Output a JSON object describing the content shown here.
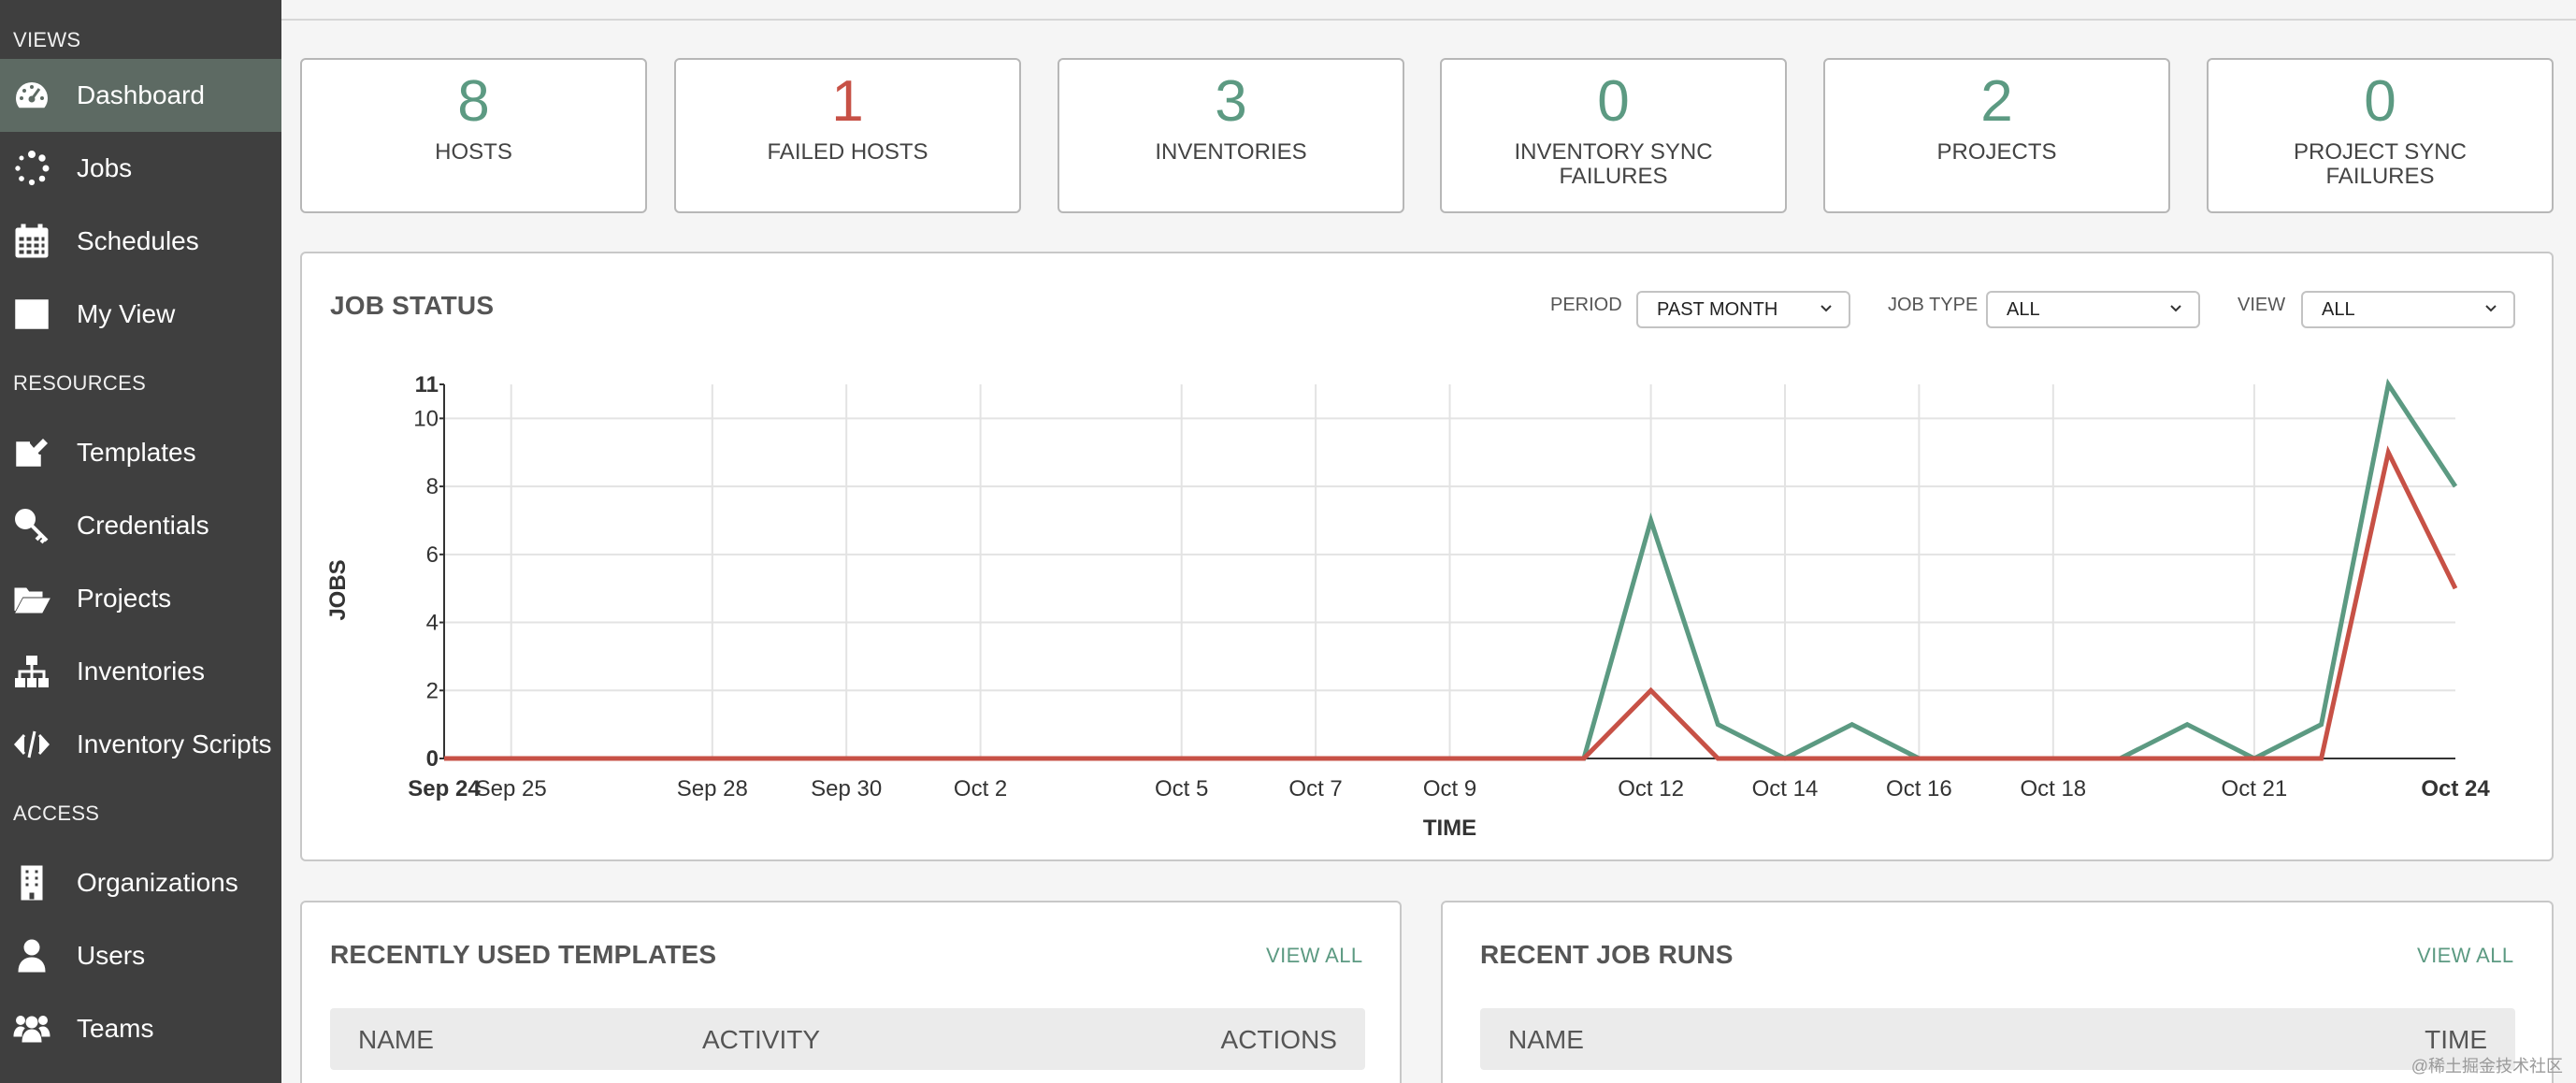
{
  "sidebar": {
    "views_label": "VIEWS",
    "resources_label": "RESOURCES",
    "access_label": "ACCESS",
    "items": [
      {
        "label": "Dashboard",
        "icon": "dashboard-icon",
        "active": true
      },
      {
        "label": "Jobs",
        "icon": "spinner-icon"
      },
      {
        "label": "Schedules",
        "icon": "calendar-icon"
      },
      {
        "label": "My View",
        "icon": "columns-icon"
      },
      {
        "label": "Templates",
        "icon": "edit-icon"
      },
      {
        "label": "Credentials",
        "icon": "key-icon"
      },
      {
        "label": "Projects",
        "icon": "folder-open-icon"
      },
      {
        "label": "Inventories",
        "icon": "sitemap-icon"
      },
      {
        "label": "Inventory Scripts",
        "icon": "code-icon"
      },
      {
        "label": "Organizations",
        "icon": "building-icon"
      },
      {
        "label": "Users",
        "icon": "user-icon"
      },
      {
        "label": "Teams",
        "icon": "users-icon"
      }
    ]
  },
  "counts": [
    {
      "value": "8",
      "label": "HOSTS",
      "color": "#5c9a82"
    },
    {
      "value": "1",
      "label": "FAILED HOSTS",
      "color": "#c75146"
    },
    {
      "value": "3",
      "label": "INVENTORIES",
      "color": "#5c9a82"
    },
    {
      "value": "0",
      "label": "INVENTORY SYNC FAILURES",
      "color": "#5c9a82"
    },
    {
      "value": "2",
      "label": "PROJECTS",
      "color": "#5c9a82"
    },
    {
      "value": "0",
      "label": "PROJECT SYNC FAILURES",
      "color": "#5c9a82"
    }
  ],
  "job_status": {
    "title": "JOB STATUS",
    "period_label": "PERIOD",
    "period_value": "PAST MONTH",
    "job_type_label": "JOB TYPE",
    "job_type_value": "ALL",
    "view_label": "VIEW",
    "view_value": "ALL"
  },
  "chart_data": {
    "type": "line",
    "xlabel": "TIME",
    "ylabel": "JOBS",
    "ylim": [
      0,
      11
    ],
    "y_ticks": [
      "0",
      "2",
      "4",
      "6",
      "8",
      "10",
      "11"
    ],
    "x_ticks": [
      "Sep 24",
      "Sep 25",
      "Sep 28",
      "Sep 30",
      "Oct 2",
      "Oct 5",
      "Oct 7",
      "Oct 9",
      "Oct 12",
      "Oct 14",
      "Oct 16",
      "Oct 18",
      "Oct 21",
      "Oct 24"
    ],
    "x": [
      "Sep 24",
      "Sep 25",
      "Sep 26",
      "Sep 27",
      "Sep 28",
      "Sep 29",
      "Sep 30",
      "Oct 1",
      "Oct 2",
      "Oct 3",
      "Oct 4",
      "Oct 5",
      "Oct 6",
      "Oct 7",
      "Oct 8",
      "Oct 9",
      "Oct 10",
      "Oct 11",
      "Oct 12",
      "Oct 13",
      "Oct 14",
      "Oct 15",
      "Oct 16",
      "Oct 17",
      "Oct 18",
      "Oct 19",
      "Oct 20",
      "Oct 21",
      "Oct 22",
      "Oct 23",
      "Oct 24"
    ],
    "grid": true,
    "series": [
      {
        "color": "#5c9a82",
        "values": [
          0,
          0,
          0,
          0,
          0,
          0,
          0,
          0,
          0,
          0,
          0,
          0,
          0,
          0,
          0,
          0,
          0,
          0,
          7,
          1,
          0,
          1,
          0,
          0,
          0,
          0,
          1,
          0,
          1,
          11,
          8
        ]
      },
      {
        "color": "#c75146",
        "values": [
          0,
          0,
          0,
          0,
          0,
          0,
          0,
          0,
          0,
          0,
          0,
          0,
          0,
          0,
          0,
          0,
          0,
          0,
          2,
          0,
          0,
          0,
          0,
          0,
          0,
          0,
          0,
          0,
          0,
          9,
          5
        ]
      }
    ]
  },
  "templates_panel": {
    "title": "RECENTLY USED TEMPLATES",
    "view_all": "VIEW ALL",
    "columns": [
      "NAME",
      "ACTIVITY",
      "ACTIONS"
    ]
  },
  "job_runs_panel": {
    "title": "RECENT JOB RUNS",
    "view_all": "VIEW ALL",
    "columns": [
      "NAME",
      "TIME"
    ]
  },
  "watermark": "@稀土掘金技术社区"
}
